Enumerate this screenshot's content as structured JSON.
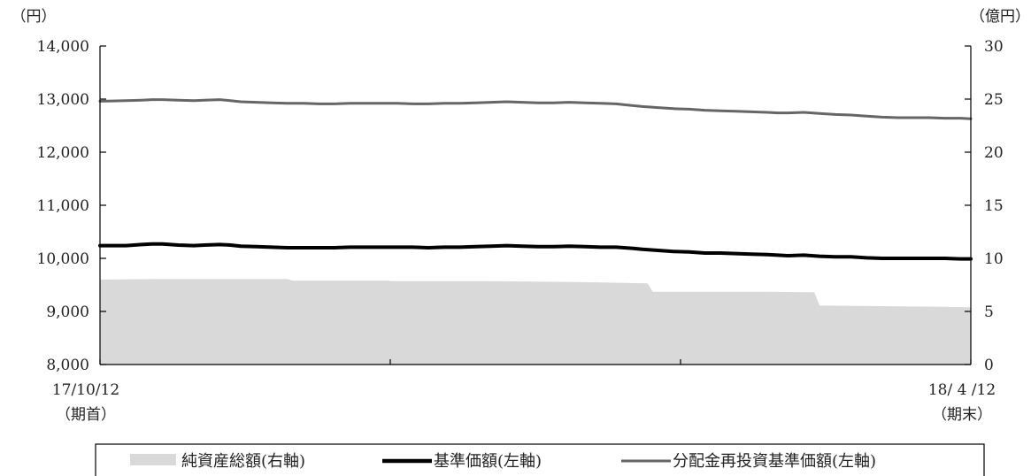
{
  "chart_data": {
    "type": "area",
    "y_left": {
      "unit": "（円）",
      "ylim": [
        8000,
        14000
      ],
      "ticks": [
        "8,000",
        "9,000",
        "10,000",
        "11,000",
        "12,000",
        "13,000",
        "14,000"
      ]
    },
    "y_right": {
      "unit": "（億円）",
      "ylim": [
        0,
        30
      ],
      "ticks": [
        "0",
        "5",
        "10",
        "15",
        "20",
        "25",
        "30"
      ]
    },
    "x": {
      "start_label": "17/10/12",
      "start_sub": "（期首）",
      "end_label": "18/ 4 /12",
      "end_sub": "（期末）",
      "n": 122
    },
    "grid": false,
    "legend_position": "bottom",
    "series": [
      {
        "name": "純資産総額(右軸)",
        "kind": "area",
        "axis": "right",
        "color": "#d9d9d9",
        "values": [
          [
            0,
            8.0
          ],
          [
            10,
            8.05
          ],
          [
            20,
            8.05
          ],
          [
            36,
            8.05
          ],
          [
            37,
            7.9
          ],
          [
            55,
            7.9
          ],
          [
            56,
            7.85
          ],
          [
            75,
            7.85
          ],
          [
            85,
            7.8
          ],
          [
            94,
            7.75
          ],
          [
            105,
            7.65
          ],
          [
            106,
            6.85
          ],
          [
            128,
            6.85
          ],
          [
            137,
            6.8
          ],
          [
            138,
            5.55
          ],
          [
            150,
            5.5
          ],
          [
            160,
            5.45
          ],
          [
            167,
            5.4
          ]
        ]
      },
      {
        "name": "基準価額(左軸)",
        "kind": "line",
        "axis": "left",
        "color": "#000000",
        "values": [
          [
            0,
            10240
          ],
          [
            5,
            10240
          ],
          [
            8,
            10260
          ],
          [
            10,
            10270
          ],
          [
            12,
            10270
          ],
          [
            15,
            10250
          ],
          [
            18,
            10240
          ],
          [
            20,
            10250
          ],
          [
            23,
            10260
          ],
          [
            25,
            10250
          ],
          [
            27,
            10230
          ],
          [
            30,
            10220
          ],
          [
            33,
            10210
          ],
          [
            36,
            10200
          ],
          [
            39,
            10200
          ],
          [
            42,
            10200
          ],
          [
            45,
            10200
          ],
          [
            48,
            10210
          ],
          [
            51,
            10210
          ],
          [
            54,
            10210
          ],
          [
            57,
            10210
          ],
          [
            60,
            10210
          ],
          [
            63,
            10200
          ],
          [
            66,
            10210
          ],
          [
            69,
            10210
          ],
          [
            72,
            10220
          ],
          [
            75,
            10230
          ],
          [
            78,
            10240
          ],
          [
            81,
            10230
          ],
          [
            84,
            10220
          ],
          [
            87,
            10220
          ],
          [
            90,
            10230
          ],
          [
            93,
            10220
          ],
          [
            96,
            10210
          ],
          [
            99,
            10210
          ],
          [
            102,
            10190
          ],
          [
            104,
            10170
          ],
          [
            107,
            10150
          ],
          [
            110,
            10130
          ],
          [
            113,
            10120
          ],
          [
            116,
            10100
          ],
          [
            119,
            10100
          ],
          [
            122,
            10090
          ],
          [
            125,
            10080
          ],
          [
            128,
            10070
          ],
          [
            130,
            10060
          ],
          [
            132,
            10050
          ],
          [
            135,
            10060
          ],
          [
            138,
            10040
          ],
          [
            141,
            10030
          ],
          [
            144,
            10030
          ],
          [
            147,
            10010
          ],
          [
            150,
            10000
          ],
          [
            153,
            10000
          ],
          [
            156,
            10000
          ],
          [
            159,
            10000
          ],
          [
            162,
            10000
          ],
          [
            165,
            9990
          ],
          [
            167,
            9990
          ]
        ]
      },
      {
        "name": "分配金再投資基準価額(左軸)",
        "kind": "line",
        "axis": "left",
        "color": "#666666",
        "values": [
          [
            0,
            12960
          ],
          [
            5,
            12970
          ],
          [
            8,
            12980
          ],
          [
            10,
            12990
          ],
          [
            12,
            12990
          ],
          [
            15,
            12980
          ],
          [
            18,
            12970
          ],
          [
            20,
            12980
          ],
          [
            23,
            12990
          ],
          [
            25,
            12970
          ],
          [
            27,
            12950
          ],
          [
            30,
            12940
          ],
          [
            33,
            12930
          ],
          [
            36,
            12920
          ],
          [
            39,
            12920
          ],
          [
            42,
            12910
          ],
          [
            45,
            12910
          ],
          [
            48,
            12920
          ],
          [
            51,
            12920
          ],
          [
            54,
            12920
          ],
          [
            57,
            12920
          ],
          [
            60,
            12910
          ],
          [
            63,
            12910
          ],
          [
            66,
            12920
          ],
          [
            69,
            12920
          ],
          [
            72,
            12930
          ],
          [
            75,
            12940
          ],
          [
            78,
            12950
          ],
          [
            81,
            12940
          ],
          [
            84,
            12930
          ],
          [
            87,
            12930
          ],
          [
            90,
            12940
          ],
          [
            93,
            12930
          ],
          [
            96,
            12920
          ],
          [
            99,
            12910
          ],
          [
            102,
            12880
          ],
          [
            104,
            12860
          ],
          [
            107,
            12840
          ],
          [
            110,
            12820
          ],
          [
            113,
            12810
          ],
          [
            116,
            12790
          ],
          [
            119,
            12780
          ],
          [
            122,
            12770
          ],
          [
            125,
            12760
          ],
          [
            128,
            12750
          ],
          [
            130,
            12740
          ],
          [
            132,
            12740
          ],
          [
            135,
            12750
          ],
          [
            138,
            12730
          ],
          [
            141,
            12710
          ],
          [
            144,
            12700
          ],
          [
            147,
            12680
          ],
          [
            150,
            12660
          ],
          [
            153,
            12650
          ],
          [
            156,
            12650
          ],
          [
            159,
            12650
          ],
          [
            162,
            12640
          ],
          [
            165,
            12640
          ],
          [
            167,
            12630
          ]
        ]
      }
    ]
  }
}
